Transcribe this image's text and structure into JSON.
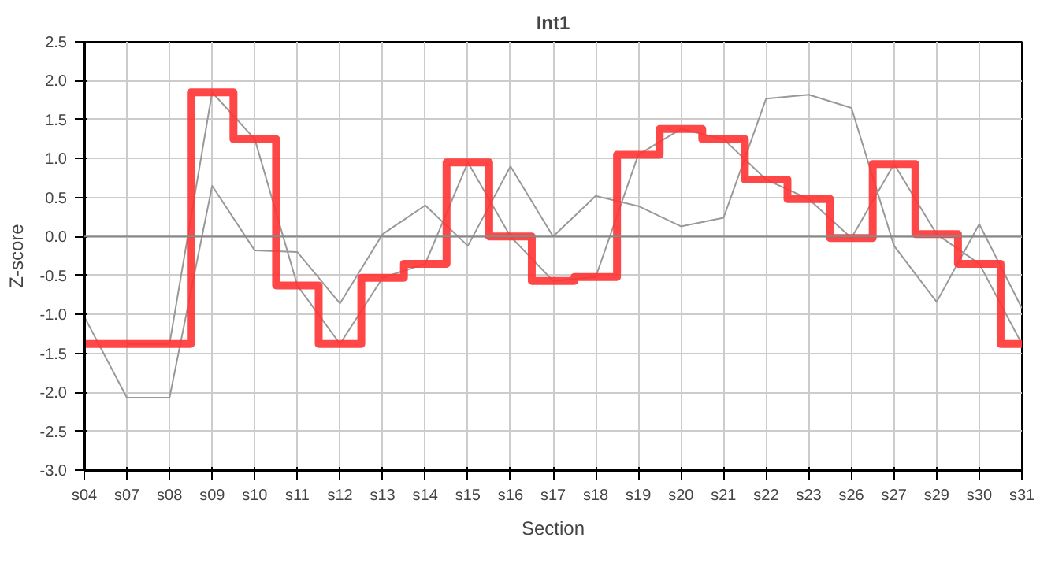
{
  "chart_data": {
    "type": "line",
    "title": "Int1",
    "xlabel": "Section",
    "ylabel": "Z-score",
    "categories": [
      "s04",
      "s07",
      "s08",
      "s09",
      "s10",
      "s11",
      "s12",
      "s13",
      "s14",
      "s15",
      "s16",
      "s17",
      "s18",
      "s19",
      "s20",
      "s21",
      "s22",
      "s23",
      "s26",
      "s27",
      "s29",
      "s30",
      "s31"
    ],
    "series": [
      {
        "color": "#999999",
        "values": [
          -1.03,
          -2.07,
          -2.07,
          0.65,
          -0.18,
          -0.2,
          -0.86,
          0.03,
          0.4,
          -0.12,
          0.9,
          0.0,
          0.52,
          0.39,
          0.13,
          0.24,
          1.77,
          1.82,
          1.65,
          -0.12,
          -0.84,
          0.16,
          -0.92
        ]
      },
      {
        "color": "#999999",
        "values": [
          null,
          -1.38,
          -1.38,
          1.85,
          1.25,
          -0.63,
          -1.38,
          -0.53,
          -0.35,
          0.95,
          0.0,
          -0.57,
          -0.52,
          1.05,
          1.38,
          1.25,
          0.73,
          0.48,
          -0.02,
          0.93,
          0.03,
          -0.35,
          -1.38
        ]
      },
      {
        "type": "step",
        "color": "#ff3333",
        "values": [
          -1.38,
          -1.38,
          -1.38,
          1.85,
          1.25,
          -0.63,
          -1.38,
          -0.53,
          -0.35,
          0.95,
          0.0,
          -0.57,
          -0.52,
          1.05,
          1.38,
          1.25,
          0.73,
          0.48,
          -0.02,
          0.93,
          0.03,
          -0.35,
          -1.38
        ]
      }
    ],
    "ylim": [
      -3.0,
      2.5
    ],
    "yticks": [
      {
        "value": -3.0,
        "label": "-3.0"
      },
      {
        "value": -2.5,
        "label": "-2.5"
      },
      {
        "value": -2.0,
        "label": "-2.0"
      },
      {
        "value": -1.5,
        "label": "-1.5"
      },
      {
        "value": -1.0,
        "label": "-1.0"
      },
      {
        "value": -0.5,
        "label": "-0.5"
      },
      {
        "value": 0.0,
        "label": "0.0"
      },
      {
        "value": 0.5,
        "label": "0.5"
      },
      {
        "value": 1.0,
        "label": "1.0"
      },
      {
        "value": 1.5,
        "label": "1.5"
      },
      {
        "value": 2.0,
        "label": "2.0"
      },
      {
        "value": 2.5,
        "label": "2.5"
      }
    ],
    "ref_lines": [
      {
        "axis": "y",
        "value": 0.0,
        "color": "#888888"
      }
    ],
    "grid": true,
    "marker": "none",
    "line_style": "solid"
  }
}
